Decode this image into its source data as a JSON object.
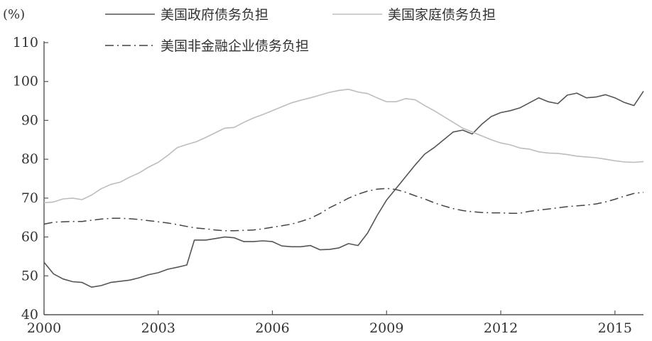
{
  "chart_data": {
    "type": "line",
    "unit_label": "(%)",
    "xlim": [
      2000,
      2015.75
    ],
    "ylim": [
      40,
      110
    ],
    "x_ticks": [
      2000,
      2003,
      2006,
      2009,
      2012,
      2015
    ],
    "y_ticks": [
      40,
      50,
      60,
      70,
      80,
      90,
      100,
      110
    ],
    "legend_position": "top-left",
    "series": [
      {
        "name": "美国政府债务负担",
        "style": "solid",
        "color": "#555555",
        "points": [
          [
            2000.0,
            53.5
          ],
          [
            2000.25,
            50.5
          ],
          [
            2000.5,
            49.2
          ],
          [
            2000.75,
            48.5
          ],
          [
            2001.0,
            48.3
          ],
          [
            2001.25,
            47.1
          ],
          [
            2001.5,
            47.5
          ],
          [
            2001.75,
            48.3
          ],
          [
            2002.0,
            48.6
          ],
          [
            2002.25,
            48.9
          ],
          [
            2002.5,
            49.5
          ],
          [
            2002.75,
            50.3
          ],
          [
            2003.0,
            50.8
          ],
          [
            2003.25,
            51.7
          ],
          [
            2003.5,
            52.2
          ],
          [
            2003.75,
            52.8
          ],
          [
            2003.95,
            59.2
          ],
          [
            2004.25,
            59.2
          ],
          [
            2004.5,
            59.6
          ],
          [
            2004.75,
            60.0
          ],
          [
            2005.0,
            59.8
          ],
          [
            2005.25,
            58.8
          ],
          [
            2005.5,
            58.8
          ],
          [
            2005.75,
            59.0
          ],
          [
            2006.0,
            58.8
          ],
          [
            2006.25,
            57.7
          ],
          [
            2006.5,
            57.5
          ],
          [
            2006.75,
            57.5
          ],
          [
            2007.0,
            57.8
          ],
          [
            2007.25,
            56.7
          ],
          [
            2007.5,
            56.8
          ],
          [
            2007.75,
            57.2
          ],
          [
            2008.0,
            58.3
          ],
          [
            2008.25,
            57.8
          ],
          [
            2008.5,
            61.0
          ],
          [
            2008.75,
            65.5
          ],
          [
            2009.0,
            69.5
          ],
          [
            2009.25,
            72.5
          ],
          [
            2009.5,
            75.5
          ],
          [
            2009.75,
            78.5
          ],
          [
            2010.0,
            81.3
          ],
          [
            2010.25,
            83.0
          ],
          [
            2010.5,
            85.0
          ],
          [
            2010.75,
            87.0
          ],
          [
            2011.0,
            87.5
          ],
          [
            2011.25,
            86.5
          ],
          [
            2011.5,
            89.0
          ],
          [
            2011.75,
            91.0
          ],
          [
            2012.0,
            92.0
          ],
          [
            2012.25,
            92.5
          ],
          [
            2012.5,
            93.2
          ],
          [
            2012.75,
            94.5
          ],
          [
            2013.0,
            95.8
          ],
          [
            2013.25,
            94.8
          ],
          [
            2013.5,
            94.3
          ],
          [
            2013.75,
            96.5
          ],
          [
            2014.0,
            97.0
          ],
          [
            2014.25,
            95.8
          ],
          [
            2014.5,
            96.0
          ],
          [
            2014.75,
            96.6
          ],
          [
            2015.0,
            95.8
          ],
          [
            2015.25,
            94.6
          ],
          [
            2015.5,
            93.8
          ],
          [
            2015.75,
            97.5
          ]
        ]
      },
      {
        "name": "美国家庭债务负担",
        "style": "solid",
        "color": "#bdbdbd",
        "points": [
          [
            2000.0,
            68.8
          ],
          [
            2000.25,
            69.0
          ],
          [
            2000.5,
            69.8
          ],
          [
            2000.75,
            70.0
          ],
          [
            2001.0,
            69.6
          ],
          [
            2001.25,
            70.8
          ],
          [
            2001.5,
            72.4
          ],
          [
            2001.75,
            73.5
          ],
          [
            2002.0,
            74.1
          ],
          [
            2002.25,
            75.4
          ],
          [
            2002.5,
            76.5
          ],
          [
            2002.75,
            78.0
          ],
          [
            2003.0,
            79.2
          ],
          [
            2003.25,
            81.0
          ],
          [
            2003.5,
            83.0
          ],
          [
            2003.75,
            83.8
          ],
          [
            2004.0,
            84.5
          ],
          [
            2004.25,
            85.6
          ],
          [
            2004.5,
            86.8
          ],
          [
            2004.75,
            88.0
          ],
          [
            2005.0,
            88.2
          ],
          [
            2005.25,
            89.5
          ],
          [
            2005.5,
            90.6
          ],
          [
            2005.75,
            91.5
          ],
          [
            2006.0,
            92.5
          ],
          [
            2006.25,
            93.5
          ],
          [
            2006.5,
            94.5
          ],
          [
            2006.75,
            95.2
          ],
          [
            2007.0,
            95.8
          ],
          [
            2007.25,
            96.5
          ],
          [
            2007.5,
            97.2
          ],
          [
            2007.75,
            97.7
          ],
          [
            2008.0,
            98.0
          ],
          [
            2008.25,
            97.3
          ],
          [
            2008.5,
            96.9
          ],
          [
            2008.75,
            95.8
          ],
          [
            2009.0,
            94.8
          ],
          [
            2009.25,
            94.8
          ],
          [
            2009.5,
            95.6
          ],
          [
            2009.75,
            95.3
          ],
          [
            2010.0,
            93.8
          ],
          [
            2010.25,
            92.5
          ],
          [
            2010.5,
            91.0
          ],
          [
            2010.75,
            89.5
          ],
          [
            2011.0,
            88.0
          ],
          [
            2011.25,
            87.0
          ],
          [
            2011.5,
            86.0
          ],
          [
            2011.75,
            85.0
          ],
          [
            2012.0,
            84.2
          ],
          [
            2012.25,
            83.7
          ],
          [
            2012.5,
            82.9
          ],
          [
            2012.75,
            82.6
          ],
          [
            2013.0,
            81.9
          ],
          [
            2013.25,
            81.6
          ],
          [
            2013.5,
            81.5
          ],
          [
            2013.75,
            81.2
          ],
          [
            2014.0,
            80.8
          ],
          [
            2014.25,
            80.6
          ],
          [
            2014.5,
            80.4
          ],
          [
            2014.75,
            80.0
          ],
          [
            2015.0,
            79.6
          ],
          [
            2015.25,
            79.3
          ],
          [
            2015.5,
            79.2
          ],
          [
            2015.75,
            79.4
          ]
        ]
      },
      {
        "name": "美国非金融企业债务负担",
        "style": "dash-dot",
        "color": "#444444",
        "points": [
          [
            2000.0,
            63.3
          ],
          [
            2000.25,
            63.8
          ],
          [
            2000.5,
            63.9
          ],
          [
            2000.75,
            64.0
          ],
          [
            2001.0,
            64.0
          ],
          [
            2001.25,
            64.3
          ],
          [
            2001.5,
            64.6
          ],
          [
            2001.75,
            64.8
          ],
          [
            2002.0,
            64.8
          ],
          [
            2002.25,
            64.7
          ],
          [
            2002.5,
            64.5
          ],
          [
            2002.75,
            64.2
          ],
          [
            2003.0,
            63.9
          ],
          [
            2003.25,
            63.6
          ],
          [
            2003.5,
            63.2
          ],
          [
            2003.75,
            62.7
          ],
          [
            2004.0,
            62.3
          ],
          [
            2004.25,
            62.1
          ],
          [
            2004.5,
            61.8
          ],
          [
            2004.75,
            61.6
          ],
          [
            2005.0,
            61.6
          ],
          [
            2005.25,
            61.7
          ],
          [
            2005.5,
            61.8
          ],
          [
            2005.75,
            62.1
          ],
          [
            2006.0,
            62.5
          ],
          [
            2006.25,
            62.9
          ],
          [
            2006.5,
            63.3
          ],
          [
            2006.75,
            64.0
          ],
          [
            2007.0,
            64.8
          ],
          [
            2007.25,
            66.0
          ],
          [
            2007.5,
            67.5
          ],
          [
            2007.75,
            68.7
          ],
          [
            2008.0,
            70.0
          ],
          [
            2008.25,
            71.0
          ],
          [
            2008.5,
            71.8
          ],
          [
            2008.75,
            72.3
          ],
          [
            2009.0,
            72.5
          ],
          [
            2009.25,
            72.2
          ],
          [
            2009.5,
            71.5
          ],
          [
            2009.75,
            70.6
          ],
          [
            2010.0,
            69.8
          ],
          [
            2010.25,
            68.8
          ],
          [
            2010.5,
            68.0
          ],
          [
            2010.75,
            67.3
          ],
          [
            2011.0,
            66.8
          ],
          [
            2011.25,
            66.5
          ],
          [
            2011.5,
            66.3
          ],
          [
            2011.75,
            66.2
          ],
          [
            2012.0,
            66.2
          ],
          [
            2012.25,
            66.1
          ],
          [
            2012.5,
            66.1
          ],
          [
            2012.75,
            66.6
          ],
          [
            2013.0,
            66.9
          ],
          [
            2013.25,
            67.2
          ],
          [
            2013.5,
            67.5
          ],
          [
            2013.75,
            67.8
          ],
          [
            2014.0,
            68.0
          ],
          [
            2014.25,
            68.2
          ],
          [
            2014.5,
            68.5
          ],
          [
            2014.75,
            69.0
          ],
          [
            2015.0,
            69.7
          ],
          [
            2015.25,
            70.5
          ],
          [
            2015.5,
            71.2
          ],
          [
            2015.75,
            71.5
          ]
        ]
      }
    ]
  }
}
